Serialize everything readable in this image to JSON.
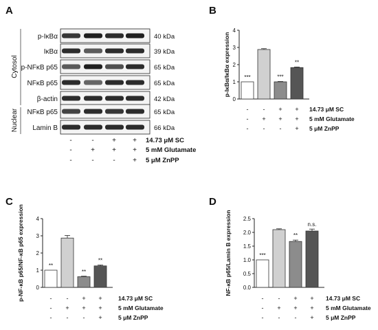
{
  "panel_letters": [
    "A",
    "B",
    "C",
    "D"
  ],
  "blot": {
    "cytosol_label": "Cytosol",
    "nuclear_label": "Nuclear",
    "bands": [
      {
        "name": "p-IκBα",
        "size": "40 kDa",
        "intensity": [
          0.85,
          0.95,
          0.9,
          0.95
        ]
      },
      {
        "name": "IκBα",
        "size": "39 kDa",
        "intensity": [
          0.9,
          0.7,
          0.9,
          0.9
        ]
      },
      {
        "name": "p-NFκB p65",
        "size": "65 kDa",
        "intensity": [
          0.7,
          0.95,
          0.75,
          0.9
        ]
      },
      {
        "name": "NFκB p65",
        "size": "65 kDa",
        "intensity": [
          0.9,
          0.65,
          0.9,
          0.9
        ]
      },
      {
        "name": "β-actin",
        "size": "42 kDa",
        "intensity": [
          0.9,
          0.9,
          0.9,
          0.9
        ]
      },
      {
        "name": "NFκB p65",
        "size": "65 kDa",
        "intensity": [
          0.8,
          0.9,
          0.85,
          0.9
        ]
      },
      {
        "name": "Lamin B",
        "size": "66 kDa",
        "intensity": [
          0.9,
          0.9,
          0.9,
          0.9
        ]
      }
    ]
  },
  "treatments": [
    {
      "label": "14.73 μM SC",
      "marks": [
        "-",
        "-",
        "+",
        "+"
      ]
    },
    {
      "label": "5 mM Glutamate",
      "marks": [
        "-",
        "+",
        "+",
        "+"
      ]
    },
    {
      "label": "5 μM ZnPP",
      "marks": [
        "-",
        "-",
        "-",
        "+"
      ]
    }
  ],
  "colors": {
    "bar_fills": [
      "#ffffff",
      "#d0d0d0",
      "#8c8c8c",
      "#555555"
    ],
    "axis": "#222222"
  },
  "chart_data": [
    {
      "type": "bar",
      "panel": "B",
      "ylabel": "p-IκBα/IκBα expression",
      "ylim": [
        0,
        4
      ],
      "yticks": [
        0,
        1,
        2,
        3,
        4
      ],
      "values": [
        1.0,
        2.88,
        1.0,
        1.83
      ],
      "errors": [
        0.0,
        0.05,
        0.02,
        0.03
      ],
      "significance": [
        "***",
        "",
        "***",
        "**"
      ]
    },
    {
      "type": "bar",
      "panel": "C",
      "ylabel": "p-NF-κB p65/NF-κB p65 expression",
      "ylim": [
        0,
        4
      ],
      "yticks": [
        0,
        1,
        2,
        3,
        4
      ],
      "values": [
        1.0,
        2.87,
        0.62,
        1.25
      ],
      "errors": [
        0.0,
        0.15,
        0.03,
        0.05
      ],
      "significance": [
        "**",
        "",
        "**",
        "**"
      ]
    },
    {
      "type": "bar",
      "panel": "D",
      "ylabel": "NF-κB p65/Lamin B expression",
      "ylim": [
        0,
        2.5
      ],
      "yticks": [
        0.0,
        0.5,
        1.0,
        1.5,
        2.0,
        2.5
      ],
      "values": [
        1.0,
        2.1,
        1.67,
        2.05
      ],
      "errors": [
        0.0,
        0.03,
        0.05,
        0.07
      ],
      "significance": [
        "***",
        "",
        "**",
        "n.s."
      ]
    }
  ]
}
